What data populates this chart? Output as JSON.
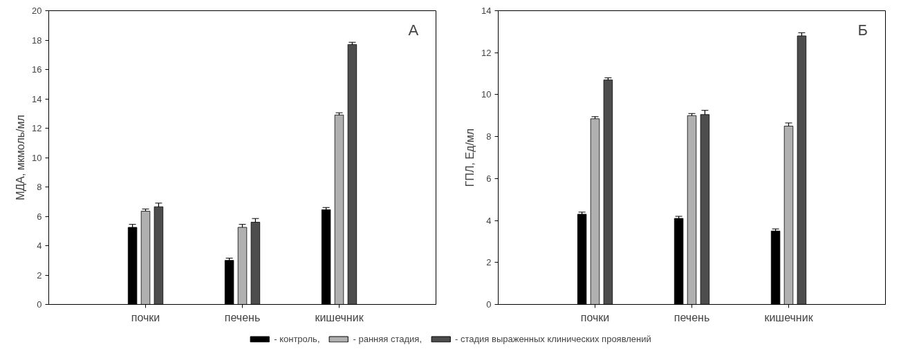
{
  "chart_data": [
    {
      "type": "bar",
      "ylabel": "МДА, мкмоль/мл",
      "categories": [
        "почки",
        "печень",
        "кишечник"
      ],
      "ylim": [
        0,
        20
      ],
      "yticks": [
        0,
        2,
        4,
        6,
        8,
        10,
        12,
        14,
        16,
        18,
        20
      ],
      "grid": false,
      "legend": "bottom",
      "annotations": [
        "А"
      ],
      "series": [
        {
          "name": "- контроль,",
          "color": "#000000",
          "values": [
            5.25,
            3.0,
            6.45
          ],
          "errors": [
            0.2,
            0.15,
            0.15
          ]
        },
        {
          "name": "- ранняя стадия,",
          "color": "#b0b0b0",
          "values": [
            6.35,
            5.25,
            12.9
          ],
          "errors": [
            0.15,
            0.2,
            0.15
          ]
        },
        {
          "name": "- стадия выраженных клинических проявлений",
          "color": "#4d4d4d",
          "values": [
            6.65,
            5.6,
            17.7
          ],
          "errors": [
            0.25,
            0.25,
            0.15
          ]
        }
      ]
    },
    {
      "type": "bar",
      "ylabel": "ГПЛ, Ед/мл",
      "categories": [
        "почки",
        "печень",
        "кишечник"
      ],
      "ylim": [
        0,
        14
      ],
      "yticks": [
        0,
        2,
        4,
        6,
        8,
        10,
        12,
        14
      ],
      "grid": false,
      "annotations": [
        "Б"
      ],
      "series": [
        {
          "color": "#000000",
          "values": [
            4.3,
            4.1,
            3.5
          ],
          "errors": [
            0.1,
            0.1,
            0.1
          ]
        },
        {
          "color": "#b0b0b0",
          "values": [
            8.85,
            9.0,
            8.5
          ],
          "errors": [
            0.1,
            0.1,
            0.15
          ]
        },
        {
          "color": "#4d4d4d",
          "values": [
            10.7,
            9.05,
            12.8
          ],
          "errors": [
            0.1,
            0.2,
            0.15
          ]
        }
      ]
    }
  ]
}
